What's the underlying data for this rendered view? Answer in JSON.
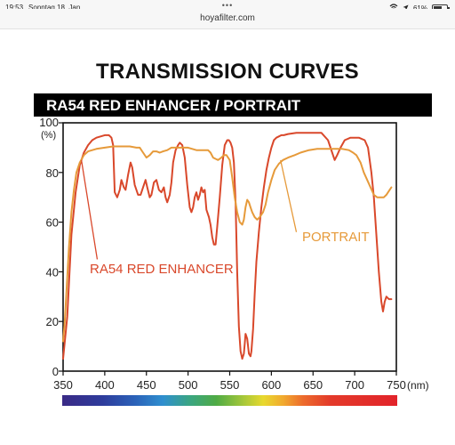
{
  "status_bar": {
    "time": "19:53",
    "date": "Sonntag 18. Jan.",
    "dots": "•••",
    "battery_percent": "61%",
    "battery_level": 0.61
  },
  "browser": {
    "url": "hoyafilter.com"
  },
  "page": {
    "title": "TRANSMISSION CURVES"
  },
  "chart_data": {
    "type": "line",
    "title": "RA54 RED ENHANCER / PORTRAIT",
    "xlabel": "(nm)",
    "ylabel": "(%)",
    "xlim": [
      350,
      750
    ],
    "ylim": [
      0,
      100
    ],
    "xticks": [
      350,
      400,
      450,
      500,
      550,
      600,
      650,
      700,
      750
    ],
    "yticks": [
      0,
      20,
      40,
      60,
      80,
      100
    ],
    "grid": false,
    "series": [
      {
        "name": "RA54 RED ENHANCER",
        "color": "#d9482b",
        "points": [
          [
            350,
            5
          ],
          [
            355,
            22
          ],
          [
            360,
            55
          ],
          [
            365,
            72
          ],
          [
            370,
            83
          ],
          [
            375,
            88
          ],
          [
            380,
            91
          ],
          [
            385,
            93
          ],
          [
            390,
            94
          ],
          [
            395,
            94.5
          ],
          [
            400,
            95
          ],
          [
            405,
            95
          ],
          [
            408,
            94
          ],
          [
            410,
            91
          ],
          [
            412,
            72
          ],
          [
            415,
            70
          ],
          [
            418,
            73
          ],
          [
            420,
            77
          ],
          [
            423,
            74
          ],
          [
            425,
            73
          ],
          [
            428,
            79
          ],
          [
            431,
            84
          ],
          [
            433,
            82
          ],
          [
            436,
            75
          ],
          [
            440,
            71
          ],
          [
            443,
            71
          ],
          [
            446,
            74
          ],
          [
            449,
            77
          ],
          [
            451,
            74
          ],
          [
            454,
            70
          ],
          [
            456,
            71
          ],
          [
            459,
            76
          ],
          [
            462,
            77
          ],
          [
            465,
            73
          ],
          [
            468,
            72
          ],
          [
            471,
            74
          ],
          [
            473,
            70
          ],
          [
            475,
            68
          ],
          [
            478,
            71
          ],
          [
            480,
            76
          ],
          [
            482,
            84
          ],
          [
            485,
            89
          ],
          [
            488,
            91
          ],
          [
            490,
            92
          ],
          [
            493,
            91
          ],
          [
            496,
            86
          ],
          [
            499,
            75
          ],
          [
            502,
            66
          ],
          [
            504,
            64
          ],
          [
            506,
            66
          ],
          [
            508,
            70
          ],
          [
            510,
            72
          ],
          [
            512,
            69
          ],
          [
            514,
            71
          ],
          [
            516,
            74
          ],
          [
            518,
            72
          ],
          [
            520,
            73
          ],
          [
            522,
            65
          ],
          [
            525,
            62
          ],
          [
            527,
            59
          ],
          [
            529,
            54
          ],
          [
            531,
            51
          ],
          [
            533,
            51
          ],
          [
            535,
            58
          ],
          [
            538,
            70
          ],
          [
            541,
            83
          ],
          [
            544,
            91
          ],
          [
            547,
            93
          ],
          [
            549,
            93
          ],
          [
            551,
            92
          ],
          [
            553,
            90
          ],
          [
            555,
            84
          ],
          [
            557,
            68
          ],
          [
            559,
            40
          ],
          [
            561,
            18
          ],
          [
            563,
            8
          ],
          [
            565,
            5
          ],
          [
            567,
            7
          ],
          [
            568,
            11
          ],
          [
            569,
            15
          ],
          [
            571,
            13
          ],
          [
            573,
            7
          ],
          [
            575,
            6
          ],
          [
            576,
            8
          ],
          [
            578,
            17
          ],
          [
            580,
            31
          ],
          [
            582,
            44
          ],
          [
            585,
            56
          ],
          [
            588,
            66
          ],
          [
            591,
            74
          ],
          [
            594,
            81
          ],
          [
            597,
            86
          ],
          [
            600,
            90
          ],
          [
            603,
            93
          ],
          [
            606,
            94
          ],
          [
            609,
            94.5
          ],
          [
            612,
            95
          ],
          [
            615,
            95
          ],
          [
            620,
            95.5
          ],
          [
            630,
            96
          ],
          [
            640,
            96
          ],
          [
            650,
            96
          ],
          [
            660,
            96
          ],
          [
            668,
            93
          ],
          [
            673,
            88
          ],
          [
            676,
            85
          ],
          [
            679,
            87
          ],
          [
            683,
            90
          ],
          [
            688,
            93
          ],
          [
            695,
            94
          ],
          [
            705,
            94
          ],
          [
            712,
            93
          ],
          [
            716,
            90
          ],
          [
            720,
            80
          ],
          [
            723,
            70
          ],
          [
            726,
            55
          ],
          [
            729,
            40
          ],
          [
            732,
            28
          ],
          [
            734,
            24
          ],
          [
            736,
            28
          ],
          [
            738,
            30
          ],
          [
            741,
            29
          ],
          [
            744,
            29
          ]
        ]
      },
      {
        "name": "PORTRAIT",
        "color": "#e69a3a",
        "points": [
          [
            350,
            12
          ],
          [
            352,
            20
          ],
          [
            354,
            32
          ],
          [
            357,
            50
          ],
          [
            360,
            64
          ],
          [
            363,
            73
          ],
          [
            366,
            80
          ],
          [
            370,
            84
          ],
          [
            375,
            87
          ],
          [
            380,
            88.5
          ],
          [
            390,
            89.5
          ],
          [
            400,
            90
          ],
          [
            410,
            90.5
          ],
          [
            420,
            90.5
          ],
          [
            430,
            90.5
          ],
          [
            438,
            90
          ],
          [
            442,
            90
          ],
          [
            446,
            88
          ],
          [
            450,
            86
          ],
          [
            454,
            87
          ],
          [
            458,
            88.5
          ],
          [
            462,
            88.5
          ],
          [
            466,
            88
          ],
          [
            470,
            88.5
          ],
          [
            475,
            89
          ],
          [
            480,
            90
          ],
          [
            485,
            90
          ],
          [
            490,
            90
          ],
          [
            495,
            90
          ],
          [
            500,
            90
          ],
          [
            505,
            89.5
          ],
          [
            510,
            89
          ],
          [
            515,
            89
          ],
          [
            520,
            89
          ],
          [
            524,
            89
          ],
          [
            527,
            88
          ],
          [
            530,
            86
          ],
          [
            533,
            85.5
          ],
          [
            536,
            85
          ],
          [
            540,
            86
          ],
          [
            543,
            87
          ],
          [
            546,
            87
          ],
          [
            550,
            85
          ],
          [
            553,
            78
          ],
          [
            556,
            70
          ],
          [
            559,
            64
          ],
          [
            562,
            60
          ],
          [
            565,
            59
          ],
          [
            567,
            61
          ],
          [
            569,
            66
          ],
          [
            571,
            69
          ],
          [
            573,
            68
          ],
          [
            575,
            66
          ],
          [
            577,
            64
          ],
          [
            580,
            62
          ],
          [
            583,
            61
          ],
          [
            586,
            62
          ],
          [
            590,
            64
          ],
          [
            593,
            67
          ],
          [
            596,
            72
          ],
          [
            600,
            77
          ],
          [
            604,
            81
          ],
          [
            609,
            83.5
          ],
          [
            614,
            85
          ],
          [
            620,
            86
          ],
          [
            628,
            87
          ],
          [
            635,
            88
          ],
          [
            645,
            89
          ],
          [
            655,
            89.5
          ],
          [
            665,
            89.5
          ],
          [
            675,
            89.5
          ],
          [
            685,
            89.5
          ],
          [
            693,
            89
          ],
          [
            698,
            88
          ],
          [
            702,
            87
          ],
          [
            707,
            84
          ],
          [
            711,
            80
          ],
          [
            715,
            77
          ],
          [
            719,
            74
          ],
          [
            723,
            71
          ],
          [
            727,
            70
          ],
          [
            731,
            70
          ],
          [
            735,
            70
          ],
          [
            738,
            71
          ],
          [
            742,
            73
          ],
          [
            744,
            74
          ]
        ]
      }
    ],
    "annotations": [
      {
        "text": "RA54 RED ENHANCER",
        "color": "#d9482b"
      },
      {
        "text": "PORTRAIT",
        "color": "#e69a3a"
      }
    ],
    "spectrum_bar": true
  }
}
